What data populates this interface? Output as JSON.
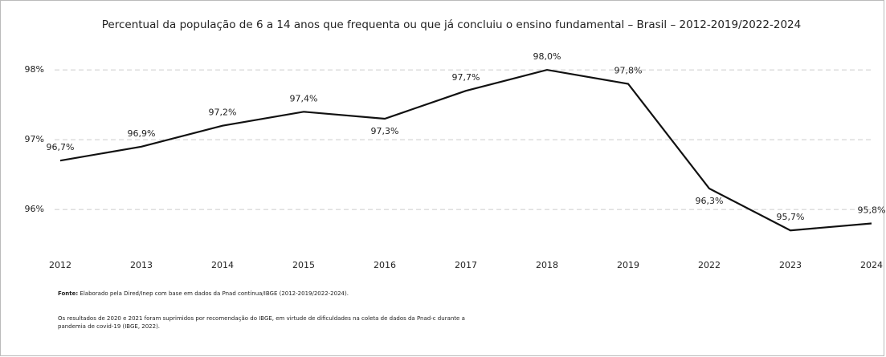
{
  "chart_data": {
    "type": "line",
    "title": "Percentual da população de 6 a 14 anos que frequenta ou que já concluiu o ensino fundamental – Brasil – 2012-2019/2022-2024",
    "categories": [
      "2012",
      "2013",
      "2014",
      "2015",
      "2016",
      "2017",
      "2018",
      "2019",
      "2022",
      "2023",
      "2024"
    ],
    "series": [
      {
        "color": "#111111",
        "values": [
          96.7,
          96.9,
          97.2,
          97.4,
          97.3,
          97.7,
          98.0,
          97.8,
          96.3,
          95.7,
          95.8
        ],
        "value_labels": [
          "96,7%",
          "96,9%",
          "97,2%",
          "97,4%",
          "97,3%",
          "97,7%",
          "98,0%",
          "97,8%",
          "96,3%",
          "95,7%",
          "95,8%"
        ]
      }
    ],
    "ylim": [
      95.3,
      98.3
    ],
    "yticks": [
      {
        "value": 96,
        "label": "96%"
      },
      {
        "value": 97,
        "label": "97%"
      },
      {
        "value": 98,
        "label": "98%"
      }
    ],
    "grid": true,
    "source_label": "Fonte:",
    "source_text": "Elaborado pela Dired/Inep com base em dados da Pnad contínua/IBGE (2012-2019/2022-2024).",
    "note_lines": [
      "Os resultados de 2020 e 2021 foram suprimidos por recomendação do IBGE, em virtude de dificuldades na coleta de dados da Pnad-c durante a",
      "pandemia de covid-19 (IBGE, 2022)."
    ]
  }
}
